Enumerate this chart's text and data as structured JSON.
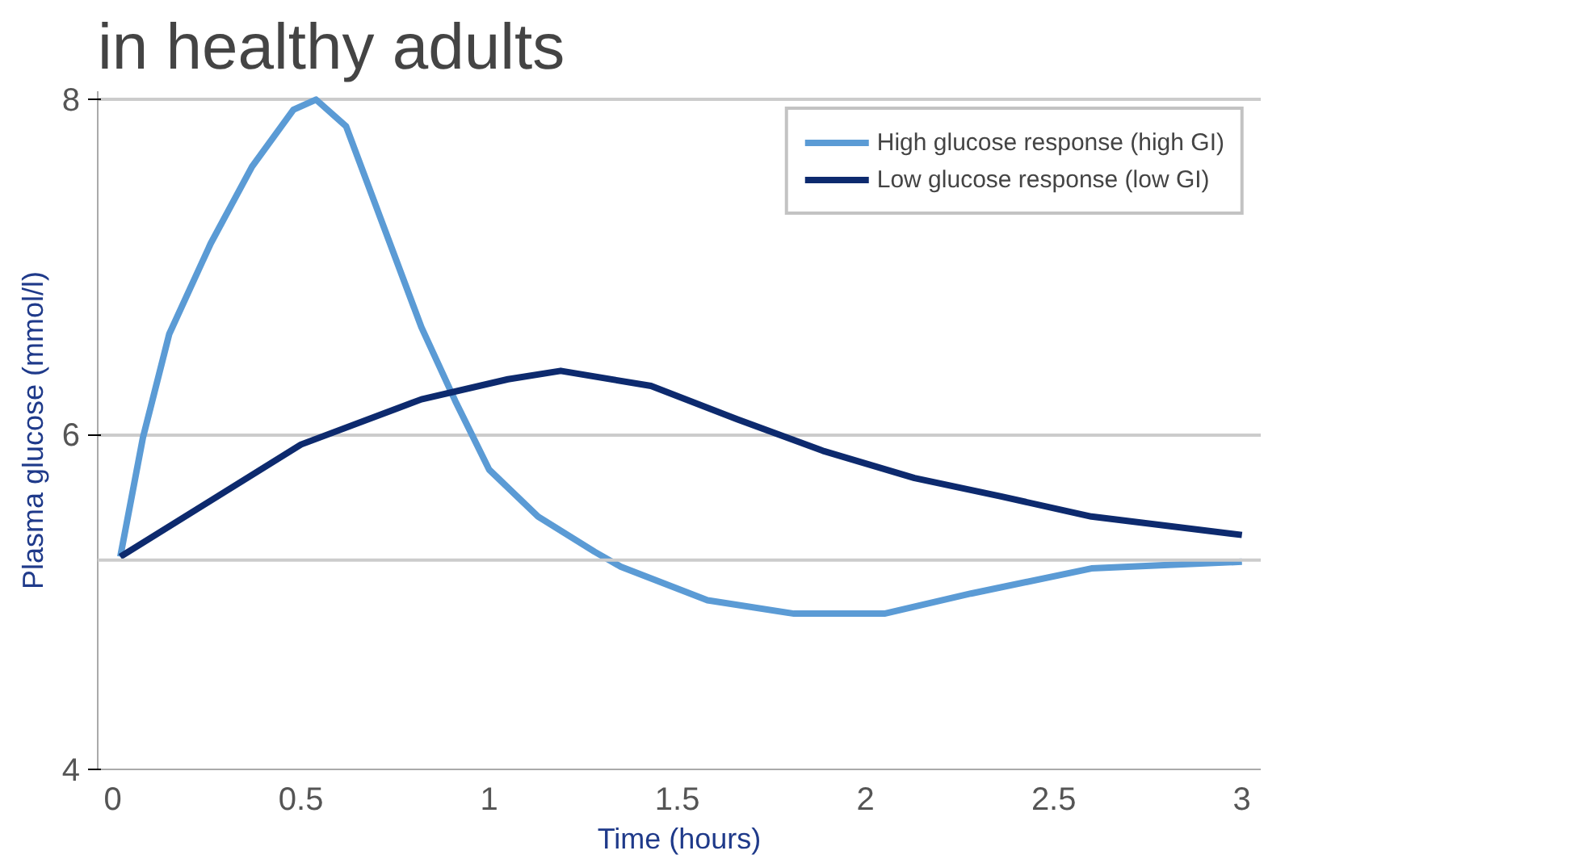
{
  "chart_data": {
    "type": "line",
    "title": "in healthy adults",
    "xlabel": "Time (hours)",
    "ylabel": "Plasma glucose (mmol/l)",
    "xlim": [
      -0.04,
      3.05
    ],
    "ylim": [
      4,
      8.05
    ],
    "xticks": [
      0,
      0.5,
      1,
      1.5,
      2,
      2.5,
      3
    ],
    "yticks": [
      4,
      6,
      8
    ],
    "grid": "y",
    "legend": "top right",
    "line_style": "solid",
    "ref_lines": [
      {
        "axis": "y",
        "value": 5.25,
        "label": null,
        "color": "#cccccc"
      }
    ],
    "series": [
      {
        "name": "High glucose response (high GI)",
        "color": "#5b9bd5",
        "x": [
          0.02,
          0.08,
          0.15,
          0.26,
          0.37,
          0.48,
          0.54,
          0.62,
          0.71,
          0.82,
          0.91,
          1.0,
          1.13,
          1.28,
          1.35,
          1.58,
          1.81,
          2.05,
          2.28,
          2.6,
          3.0
        ],
        "values": [
          5.27,
          5.98,
          6.6,
          7.14,
          7.6,
          7.94,
          8.0,
          7.84,
          7.3,
          6.64,
          6.2,
          5.79,
          5.51,
          5.3,
          5.21,
          5.01,
          4.93,
          4.93,
          5.05,
          5.2,
          5.24
        ]
      },
      {
        "name": "Low glucose response (low GI)",
        "color": "#0d2a6e",
        "x": [
          0.02,
          0.5,
          0.82,
          1.05,
          1.19,
          1.43,
          1.66,
          1.89,
          2.13,
          2.36,
          2.6,
          3.0
        ],
        "values": [
          5.27,
          5.94,
          6.21,
          6.33,
          6.38,
          6.29,
          6.09,
          5.9,
          5.74,
          5.63,
          5.51,
          5.4
        ]
      }
    ]
  }
}
